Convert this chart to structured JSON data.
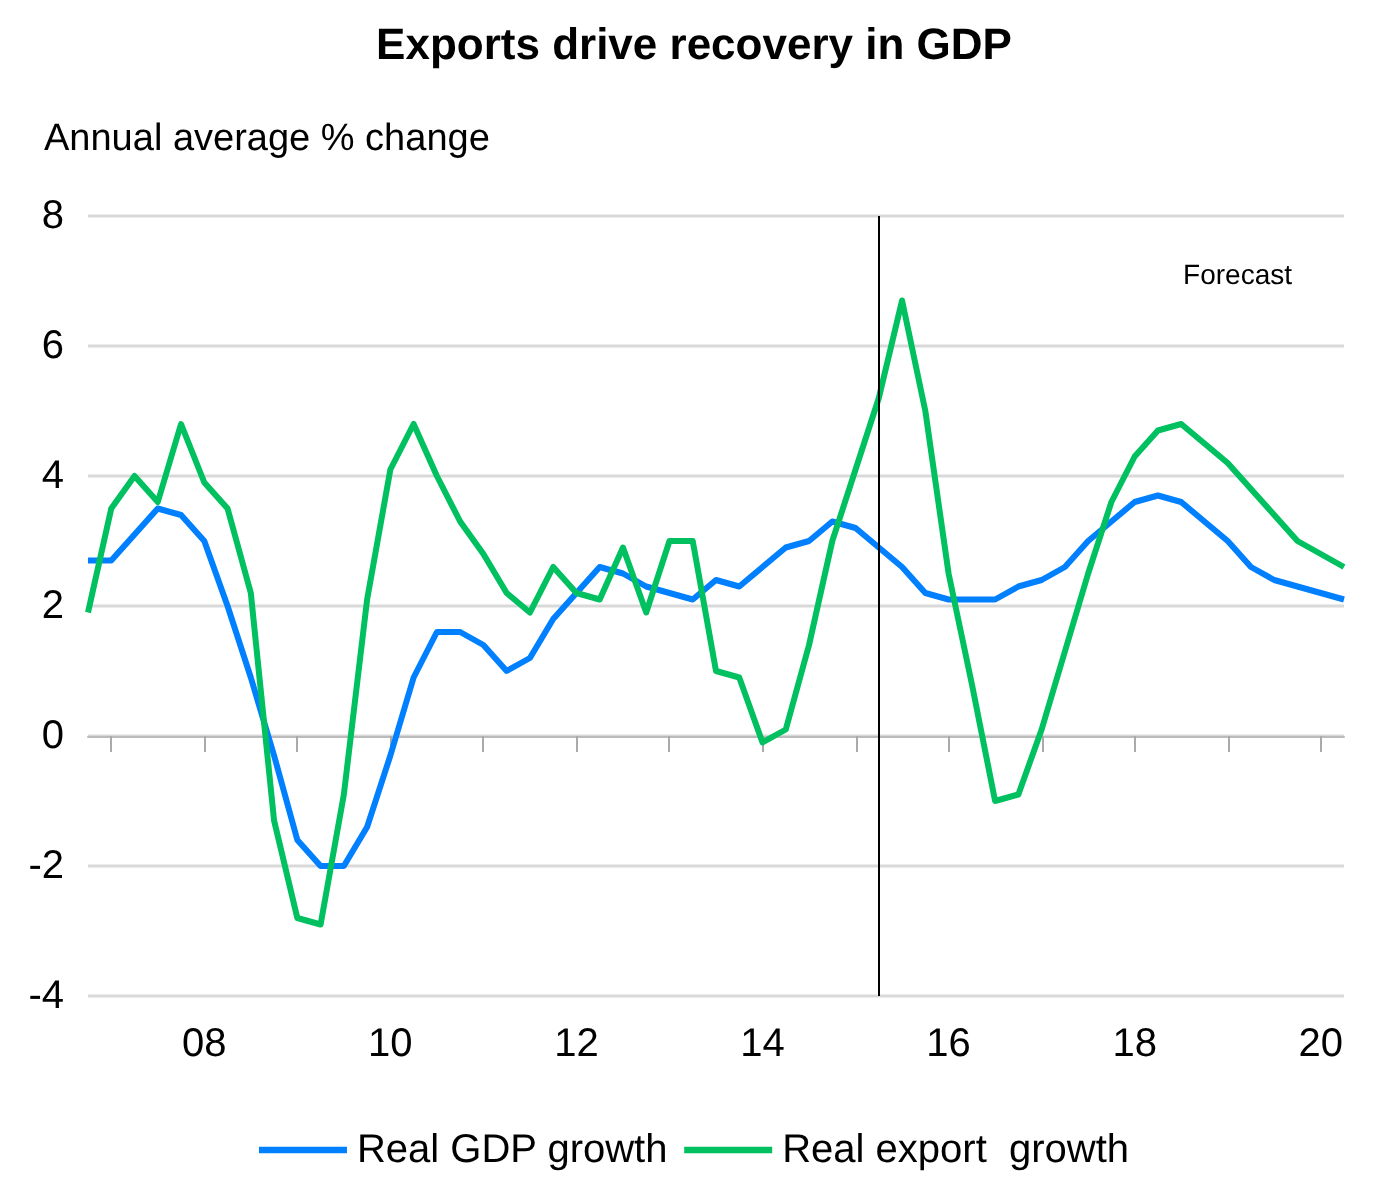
{
  "chart_data": {
    "type": "line",
    "title": "Exports drive recovery in GDP",
    "ylabel": "Annual average % change",
    "x": [
      2006.75,
      2007,
      2007.25,
      2007.5,
      2007.75,
      2008,
      2008.25,
      2008.5,
      2008.75,
      2009,
      2009.25,
      2009.5,
      2009.75,
      2010,
      2010.25,
      2010.5,
      2010.75,
      2011,
      2011.25,
      2011.5,
      2011.75,
      2012,
      2012.25,
      2012.5,
      2012.75,
      2013,
      2013.25,
      2013.5,
      2013.75,
      2014,
      2014.25,
      2014.5,
      2014.75,
      2015,
      2015.25,
      2015.5,
      2015.75,
      2016,
      2016.25,
      2016.5,
      2016.75,
      2017,
      2017.25,
      2017.5,
      2017.75,
      2018,
      2018.25,
      2018.5,
      2018.75,
      2019,
      2019.25,
      2019.5,
      2019.75,
      2020,
      2020.25
    ],
    "series": [
      {
        "name": "Real GDP growth",
        "color": "#0080ff",
        "values": [
          2.7,
          2.7,
          3.1,
          3.5,
          3.4,
          3.0,
          2.0,
          0.9,
          -0.3,
          -1.6,
          -2.0,
          -2.0,
          -1.4,
          -0.3,
          0.9,
          1.6,
          1.6,
          1.4,
          1.0,
          1.2,
          1.8,
          2.2,
          2.6,
          2.5,
          2.3,
          2.2,
          2.1,
          2.4,
          2.3,
          2.6,
          2.9,
          3.0,
          3.3,
          3.2,
          2.9,
          2.6,
          2.2,
          2.1,
          2.1,
          2.1,
          2.3,
          2.4,
          2.6,
          3.0,
          3.3,
          3.6,
          3.7,
          3.6,
          3.3,
          3.0,
          2.6,
          2.4,
          2.3,
          2.2,
          2.1
        ]
      },
      {
        "name": "Real export  growth",
        "color": "#00c060",
        "values": [
          1.9,
          3.5,
          4.0,
          3.6,
          4.8,
          3.9,
          3.5,
          2.2,
          -1.3,
          -2.8,
          -2.9,
          -0.9,
          2.1,
          4.1,
          4.8,
          4.0,
          3.3,
          2.8,
          2.2,
          1.9,
          2.6,
          2.2,
          2.1,
          2.9,
          1.9,
          3.0,
          3.0,
          1.0,
          0.9,
          -0.1,
          0.1,
          1.4,
          3.0,
          4.1,
          5.2,
          6.7,
          5.0,
          2.5,
          0.8,
          -1.0,
          -0.9,
          0.1,
          1.3,
          2.5,
          3.6,
          4.3,
          4.7,
          4.8,
          4.5,
          4.2,
          3.8,
          3.4,
          3.0,
          2.8,
          2.6
        ]
      }
    ],
    "xlim": [
      2006.75,
      2020.25
    ],
    "xticks": [
      {
        "value": 2007,
        "label": null
      },
      {
        "value": 2008,
        "label": "08"
      },
      {
        "value": 2009,
        "label": null
      },
      {
        "value": 2010,
        "label": "10"
      },
      {
        "value": 2011,
        "label": null
      },
      {
        "value": 2012,
        "label": "12"
      },
      {
        "value": 2013,
        "label": null
      },
      {
        "value": 2014,
        "label": "14"
      },
      {
        "value": 2015,
        "label": null
      },
      {
        "value": 2016,
        "label": "16"
      },
      {
        "value": 2017,
        "label": null
      },
      {
        "value": 2018,
        "label": "18"
      },
      {
        "value": 2019,
        "label": null
      },
      {
        "value": 2020,
        "label": "20"
      }
    ],
    "ylim": [
      -4,
      8
    ],
    "yticks": [
      -4,
      -2,
      0,
      2,
      4,
      6,
      8
    ],
    "grid": "y",
    "legend": "bottom",
    "marker": "none",
    "line_style": "solid",
    "ref_lines": [
      {
        "axis": "x",
        "value": 2015.25,
        "color": "#000000"
      }
    ],
    "annotations": [
      "Forecast"
    ]
  }
}
